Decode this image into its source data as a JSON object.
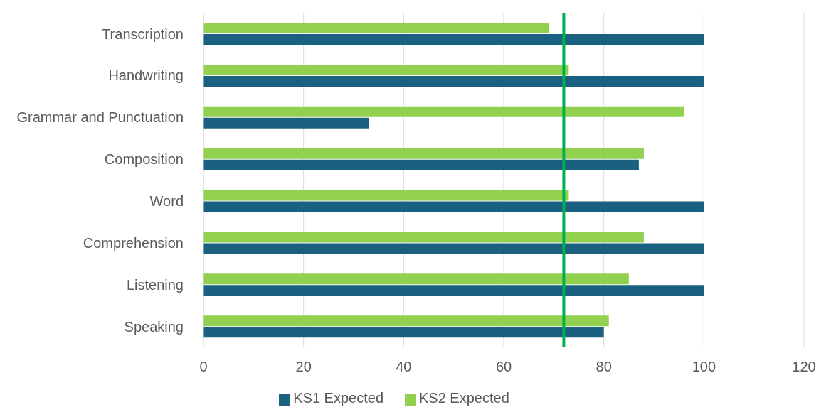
{
  "chart_data": {
    "type": "bar",
    "orientation": "horizontal",
    "categories": [
      "Transcription",
      "Handwriting",
      "Grammar and Punctuation",
      "Composition",
      "Word",
      "Comprehension",
      "Listening",
      "Speaking"
    ],
    "series": [
      {
        "name": "KS2 Expected",
        "color": "#92d050",
        "values": [
          69,
          73,
          96,
          88,
          73,
          88,
          85,
          81
        ]
      },
      {
        "name": "KS1 Expected",
        "color": "#1a6080",
        "values": [
          100,
          100,
          33,
          87,
          100,
          100,
          100,
          80
        ]
      }
    ],
    "xlim": [
      0,
      120
    ],
    "xticks": [
      0,
      20,
      40,
      60,
      80,
      100,
      120
    ],
    "grid": "x",
    "legend": "bottom",
    "ref_lines": [
      {
        "axis": "x",
        "value": 72,
        "color": "#00b050"
      }
    ]
  }
}
